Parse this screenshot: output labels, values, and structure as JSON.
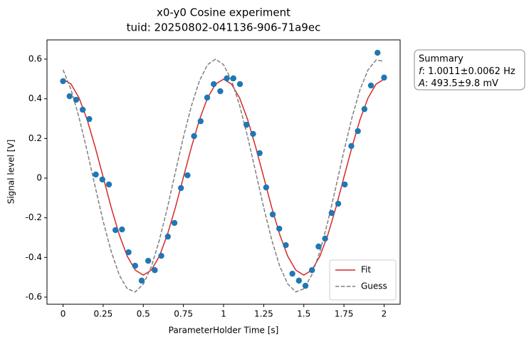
{
  "chart_data": {
    "type": "scatter",
    "title": [
      "x0-y0 Cosine experiment",
      "tuid: 20250802-041136-906-71a9ec"
    ],
    "x_label": "ParameterHolder Time [s]",
    "y_label": "Signal level [V]",
    "xlim": [
      -0.1,
      2.1
    ],
    "ylim": [
      -0.636,
      0.697
    ],
    "xticks": [
      0,
      0.25,
      0.5,
      0.75,
      1,
      1.25,
      1.5,
      1.75,
      2
    ],
    "yticks": [
      -0.6,
      -0.4,
      -0.2,
      0,
      0.2,
      0.4,
      0.6
    ],
    "grid": false,
    "legend": "lower right",
    "points": {
      "color": "#1f77b4",
      "x": [
        0,
        0.0408,
        0.0816,
        0.1224,
        0.1633,
        0.2041,
        0.2449,
        0.2857,
        0.3265,
        0.3673,
        0.4082,
        0.449,
        0.4898,
        0.5306,
        0.5714,
        0.6122,
        0.6531,
        0.6939,
        0.7347,
        0.7755,
        0.8163,
        0.8571,
        0.898,
        0.9388,
        0.9796,
        1.0204,
        1.0612,
        1.102,
        1.1429,
        1.1837,
        1.2245,
        1.2653,
        1.3061,
        1.3469,
        1.3878,
        1.4286,
        1.4694,
        1.5102,
        1.551,
        1.5918,
        1.6327,
        1.6735,
        1.7143,
        1.7551,
        1.7959,
        1.8367,
        1.8776,
        1.9184,
        1.9592,
        2
      ],
      "values": [
        0.489,
        0.413,
        0.395,
        0.345,
        0.298,
        0.018,
        -0.007,
        -0.032,
        -0.262,
        -0.259,
        -0.374,
        -0.442,
        -0.517,
        -0.417,
        -0.464,
        -0.392,
        -0.295,
        -0.226,
        -0.05,
        0.014,
        0.212,
        0.287,
        0.406,
        0.474,
        0.438,
        0.503,
        0.503,
        0.474,
        0.269,
        0.223,
        0.126,
        -0.047,
        -0.183,
        -0.255,
        -0.338,
        -0.482,
        -0.517,
        -0.543,
        -0.464,
        -0.345,
        -0.305,
        -0.176,
        -0.129,
        -0.032,
        0.162,
        0.237,
        0.348,
        0.467,
        0.632,
        0.507
      ]
    },
    "series": [
      {
        "name": "Fit",
        "color": "#d62728",
        "dashed": false,
        "x": [
          0,
          0.05,
          0.1,
          0.15,
          0.2,
          0.25,
          0.3,
          0.35,
          0.4,
          0.45,
          0.5,
          0.55,
          0.6,
          0.65,
          0.7,
          0.75,
          0.8,
          0.85,
          0.9,
          0.95,
          1,
          1.05,
          1.1,
          1.15,
          1.2,
          1.25,
          1.3,
          1.35,
          1.4,
          1.45,
          1.5,
          1.55,
          1.6,
          1.65,
          1.7,
          1.75,
          1.8,
          1.85,
          1.9,
          1.95,
          2
        ],
        "values": [
          0.499,
          0.474,
          0.404,
          0.295,
          0.157,
          0.005,
          -0.148,
          -0.285,
          -0.394,
          -0.464,
          -0.489,
          -0.464,
          -0.394,
          -0.285,
          -0.148,
          0.005,
          0.157,
          0.295,
          0.404,
          0.474,
          0.499,
          0.474,
          0.404,
          0.295,
          0.157,
          0.005,
          -0.148,
          -0.285,
          -0.394,
          -0.464,
          -0.489,
          -0.464,
          -0.394,
          -0.285,
          -0.148,
          0.005,
          0.157,
          0.295,
          0.404,
          0.474,
          0.499
        ]
      },
      {
        "name": "Guess",
        "color": "#7f7f7f",
        "dashed": true,
        "x": [
          0,
          0.05,
          0.1,
          0.15,
          0.2,
          0.25,
          0.3,
          0.35,
          0.4,
          0.45,
          0.5,
          0.55,
          0.6,
          0.65,
          0.7,
          0.75,
          0.8,
          0.85,
          0.9,
          0.95,
          1,
          1.05,
          1.1,
          1.15,
          1.2,
          1.25,
          1.3,
          1.35,
          1.4,
          1.45,
          1.5,
          1.55,
          1.6,
          1.65,
          1.7,
          1.75,
          1.8,
          1.85,
          1.9,
          1.95,
          2
        ],
        "values": [
          0.546,
          0.446,
          0.305,
          0.137,
          -0.043,
          -0.218,
          -0.37,
          -0.488,
          -0.558,
          -0.574,
          -0.535,
          -0.447,
          -0.313,
          -0.15,
          0.031,
          0.207,
          0.365,
          0.491,
          0.572,
          0.6,
          0.572,
          0.492,
          0.367,
          0.208,
          0.031,
          -0.148,
          -0.311,
          -0.445,
          -0.534,
          -0.574,
          -0.558,
          -0.488,
          -0.371,
          -0.218,
          -0.043,
          0.137,
          0.305,
          0.446,
          0.546,
          0.595,
          0.59
        ]
      }
    ],
    "summary": {
      "title": "Summary",
      "lines": [
        {
          "symbol": "f",
          "text": ": 1.0011±0.0062 Hz"
        },
        {
          "symbol": "A",
          "text": ": 493.5±9.8 mV"
        }
      ]
    }
  }
}
